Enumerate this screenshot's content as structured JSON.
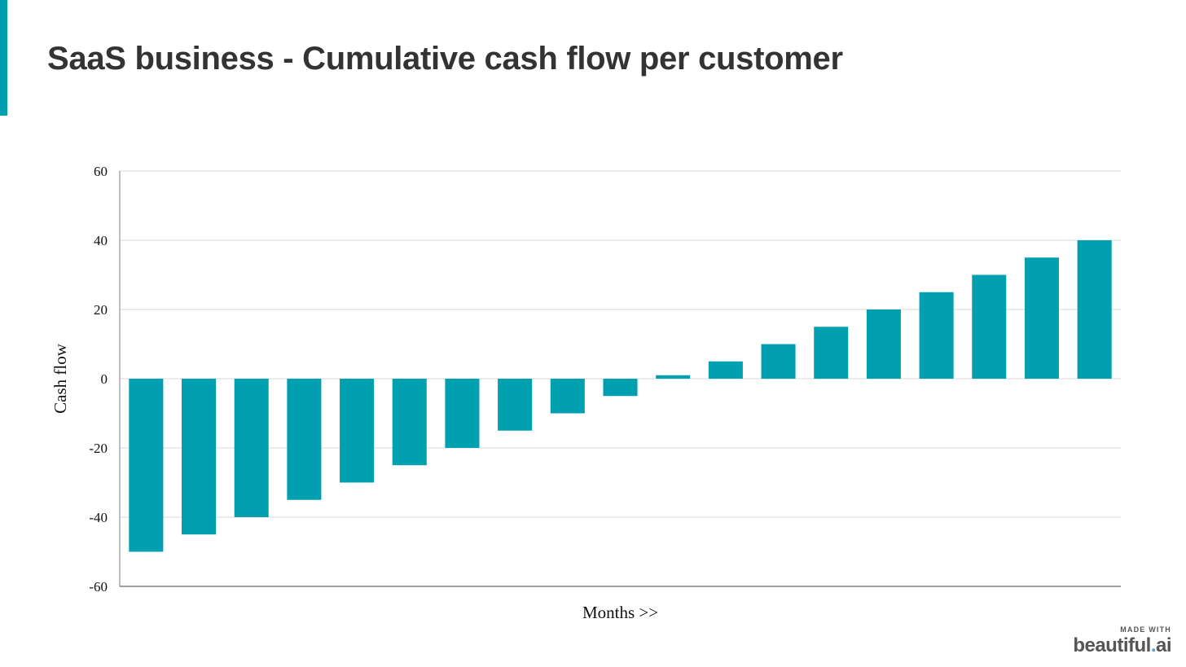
{
  "title": "SaaS business - Cumulative cash flow per customer",
  "colors": {
    "accent": "#00a0b0",
    "bar": "#00a0b0",
    "grid": "#d9d9d9",
    "axis": "#7f7f7f"
  },
  "watermark": {
    "top": "MADE WITH",
    "brand_main": "beautiful",
    "brand_dot": ".",
    "brand_suffix": "ai"
  },
  "chart_data": {
    "type": "bar",
    "title": "",
    "xlabel": "Months >>",
    "ylabel": "Cash flow",
    "ylim": [
      -60,
      60
    ],
    "yticks": [
      60,
      40,
      20,
      0,
      -20,
      -40,
      -60
    ],
    "grid": true,
    "legend": "none",
    "categories": [
      "",
      "",
      "",
      "",
      "",
      "",
      "",
      "",
      "",
      "",
      "",
      "",
      "",
      "",
      "",
      "",
      "",
      "",
      ""
    ],
    "values": [
      -50,
      -45,
      -40,
      -35,
      -30,
      -25,
      -20,
      -15,
      -10,
      -5,
      1,
      5,
      10,
      15,
      20,
      25,
      30,
      35,
      40
    ]
  }
}
